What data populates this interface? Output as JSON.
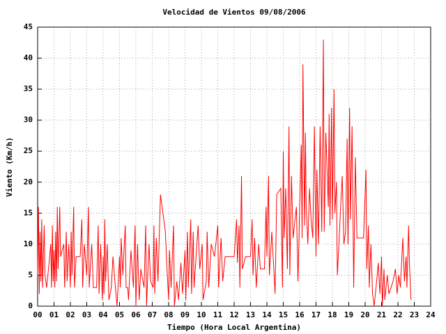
{
  "chart_data": {
    "type": "line",
    "title": "Velocidad de Vientos 09/08/2006",
    "x_label": "Tiempo (Hora Local Argentina)",
    "y_label": "Viento (Km/h)",
    "xlim": [
      0,
      24
    ],
    "ylim": [
      0,
      45
    ],
    "xticks": [
      {
        "value": 0,
        "label": "00"
      },
      {
        "value": 1,
        "label": "01"
      },
      {
        "value": 2,
        "label": "02"
      },
      {
        "value": 3,
        "label": "03"
      },
      {
        "value": 4,
        "label": "04"
      },
      {
        "value": 5,
        "label": "05"
      },
      {
        "value": 6,
        "label": "06"
      },
      {
        "value": 7,
        "label": "07"
      },
      {
        "value": 8,
        "label": "08"
      },
      {
        "value": 9,
        "label": "09"
      },
      10,
      11,
      12,
      13,
      14,
      15,
      16,
      17,
      18,
      19,
      20,
      21,
      22,
      23,
      24
    ],
    "yticks": [
      0,
      5,
      10,
      15,
      20,
      25,
      30,
      35,
      40,
      45
    ],
    "grid": true,
    "color": "#ff0000",
    "x": [
      0.0,
      0.05,
      0.1,
      0.15,
      0.2,
      0.25,
      0.3,
      0.4,
      0.45,
      0.55,
      0.7,
      0.8,
      0.85,
      0.9,
      0.95,
      1.0,
      1.05,
      1.1,
      1.15,
      1.2,
      1.25,
      1.35,
      1.4,
      1.6,
      1.65,
      1.75,
      1.8,
      1.9,
      2.0,
      2.05,
      2.1,
      2.2,
      2.25,
      2.35,
      2.6,
      2.7,
      2.75,
      2.85,
      3.0,
      3.1,
      3.15,
      3.3,
      3.4,
      3.6,
      3.7,
      3.75,
      3.85,
      3.95,
      4.0,
      4.05,
      4.1,
      4.15,
      4.25,
      4.35,
      4.5,
      4.6,
      4.75,
      4.85,
      5.0,
      5.05,
      5.1,
      5.2,
      5.35,
      5.4,
      5.5,
      5.55,
      5.7,
      5.85,
      5.95,
      6.0,
      6.1,
      6.2,
      6.3,
      6.5,
      6.6,
      6.65,
      6.8,
      6.9,
      7.05,
      7.1,
      7.15,
      7.25,
      7.35,
      7.5,
      7.8,
      7.9,
      8.0,
      8.05,
      8.15,
      8.3,
      8.35,
      8.5,
      8.6,
      8.75,
      8.85,
      9.0,
      9.05,
      9.15,
      9.2,
      9.35,
      9.4,
      9.5,
      9.55,
      9.7,
      9.8,
      9.9,
      10.05,
      10.1,
      10.3,
      10.35,
      10.45,
      10.6,
      10.8,
      11.0,
      11.05,
      11.2,
      11.3,
      11.45,
      11.7,
      12.0,
      12.15,
      12.2,
      12.3,
      12.35,
      12.45,
      12.5,
      12.7,
      13.0,
      13.1,
      13.15,
      13.25,
      13.35,
      13.5,
      13.6,
      13.85,
      13.95,
      14.0,
      14.1,
      14.15,
      14.3,
      14.5,
      14.6,
      14.85,
      14.95,
      15.0,
      15.05,
      15.15,
      15.25,
      15.35,
      15.4,
      15.5,
      15.6,
      15.8,
      15.9,
      16.0,
      16.1,
      16.15,
      16.2,
      16.3,
      16.35,
      16.4,
      16.5,
      16.6,
      16.7,
      16.8,
      16.9,
      17.0,
      17.05,
      17.15,
      17.25,
      17.35,
      17.45,
      17.5,
      17.6,
      17.75,
      17.8,
      17.85,
      17.95,
      18.0,
      18.1,
      18.15,
      18.25,
      18.3,
      18.4,
      18.5,
      18.6,
      18.7,
      18.8,
      18.9,
      18.95,
      19.05,
      19.1,
      19.2,
      19.3,
      19.4,
      19.5,
      19.7,
      19.9,
      20.05,
      20.1,
      20.2,
      20.25,
      20.35,
      20.45,
      20.55,
      20.7,
      20.8,
      20.9,
      21.0,
      21.05,
      21.15,
      21.2,
      21.35,
      21.45,
      21.7,
      21.85,
      21.95,
      22.05,
      22.15,
      22.3,
      22.4,
      22.5,
      22.55,
      22.65,
      22.7,
      22.8
    ],
    "values": [
      5,
      16,
      2,
      12,
      4,
      14,
      3,
      13,
      5,
      3,
      7,
      10,
      3,
      13,
      4,
      9,
      3,
      12,
      4,
      16,
      6,
      16,
      8,
      10,
      3,
      12,
      4,
      10,
      3,
      12,
      5,
      16,
      3,
      8,
      8,
      14,
      3,
      10,
      5,
      16,
      3,
      10,
      3,
      3,
      13,
      2,
      10,
      1,
      8,
      2,
      14,
      4,
      10,
      1,
      3,
      8,
      3,
      0,
      8,
      3,
      11,
      5,
      13,
      3,
      3,
      1,
      9,
      3,
      13,
      0,
      10,
      1,
      6,
      3,
      13,
      0,
      10,
      4,
      3,
      13,
      2,
      11,
      4,
      18,
      12,
      6,
      1,
      9,
      3,
      13,
      0,
      4,
      1,
      7,
      2,
      9,
      1,
      12,
      3,
      14,
      2,
      12,
      3,
      9,
      13,
      6,
      10,
      1,
      4,
      12,
      3,
      10,
      8,
      13,
      3,
      11,
      4,
      8,
      8,
      8,
      14,
      7,
      13,
      3,
      21,
      6,
      8,
      8,
      14,
      5,
      11,
      3,
      10,
      6,
      6,
      16,
      8,
      21,
      5,
      12,
      2,
      18,
      19,
      3,
      25,
      11,
      19,
      6,
      29,
      5,
      21,
      11,
      16,
      4,
      16,
      26,
      11,
      39,
      13,
      28,
      16,
      10,
      19,
      14,
      11,
      29,
      8,
      22,
      10,
      29,
      12,
      43,
      12,
      28,
      16,
      31,
      13,
      32,
      14,
      35,
      15,
      20,
      5,
      10,
      16,
      21,
      10,
      12,
      27,
      10,
      32,
      14,
      29,
      3,
      24,
      11,
      11,
      11,
      22,
      6,
      13,
      3,
      10,
      2,
      0,
      4,
      7,
      2,
      8,
      0,
      6,
      1,
      5,
      2,
      4,
      6,
      2,
      5,
      3,
      11,
      4,
      8,
      3,
      13,
      7,
      1
    ]
  }
}
